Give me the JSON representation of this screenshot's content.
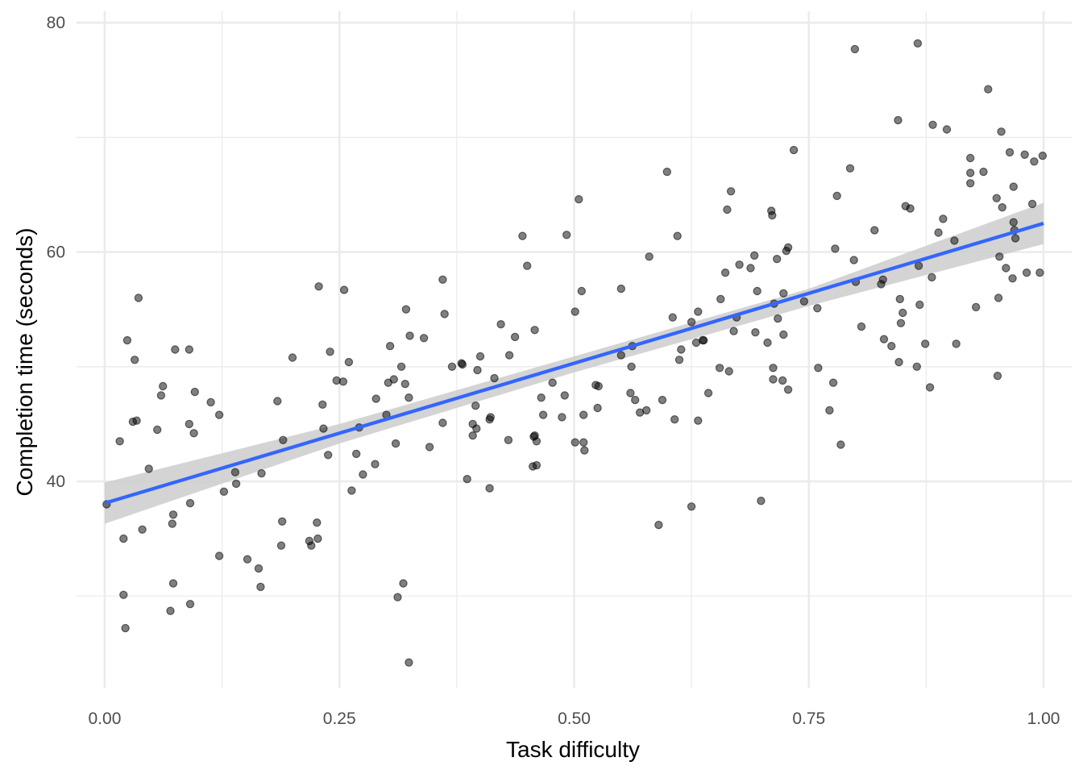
{
  "chart_data": {
    "type": "scatter",
    "xlabel": "Task difficulty",
    "ylabel": "Completion time (seconds)",
    "xlim": [
      -0.03,
      1.03
    ],
    "ylim": [
      22,
      81
    ],
    "x_ticks": [
      0.0,
      0.25,
      0.5,
      0.75,
      1.0
    ],
    "x_tick_labels": [
      "0.00",
      "0.25",
      "0.50",
      "0.75",
      "1.00"
    ],
    "y_ticks": [
      40,
      60,
      80
    ],
    "y_tick_labels": [
      "40",
      "60",
      "80"
    ],
    "x_minor_ticks": [
      0.125,
      0.375,
      0.625,
      0.875
    ],
    "y_minor_ticks": [
      30,
      50,
      70
    ],
    "grid": true,
    "legend": "none",
    "colors": {
      "points": "#000000",
      "fit_line": "#3366FF",
      "confidence_band": "#cccccc"
    },
    "fit": {
      "method": "linear",
      "x": [
        0.0,
        1.0
      ],
      "y": [
        38.1,
        62.5
      ],
      "ci_x": [
        0.0,
        0.25,
        0.5,
        0.75,
        1.0
      ],
      "ci_lower": [
        36.3,
        43.3,
        49.5,
        55.3,
        60.7
      ],
      "ci_upper": [
        39.9,
        45.0,
        50.9,
        56.8,
        64.3
      ]
    },
    "points": [
      {
        "x": 0.002,
        "y": 38.0
      },
      {
        "x": 0.016,
        "y": 43.5
      },
      {
        "x": 0.02,
        "y": 35.0
      },
      {
        "x": 0.02,
        "y": 30.1
      },
      {
        "x": 0.022,
        "y": 27.2
      },
      {
        "x": 0.024,
        "y": 52.3
      },
      {
        "x": 0.03,
        "y": 45.2
      },
      {
        "x": 0.032,
        "y": 50.6
      },
      {
        "x": 0.034,
        "y": 45.3
      },
      {
        "x": 0.036,
        "y": 56.0
      },
      {
        "x": 0.04,
        "y": 35.8
      },
      {
        "x": 0.047,
        "y": 41.1
      },
      {
        "x": 0.056,
        "y": 44.5
      },
      {
        "x": 0.06,
        "y": 47.5
      },
      {
        "x": 0.062,
        "y": 48.3
      },
      {
        "x": 0.07,
        "y": 28.7
      },
      {
        "x": 0.072,
        "y": 36.3
      },
      {
        "x": 0.073,
        "y": 37.1
      },
      {
        "x": 0.073,
        "y": 31.1
      },
      {
        "x": 0.075,
        "y": 51.5
      },
      {
        "x": 0.09,
        "y": 51.5
      },
      {
        "x": 0.09,
        "y": 45.0
      },
      {
        "x": 0.091,
        "y": 38.1
      },
      {
        "x": 0.091,
        "y": 29.3
      },
      {
        "x": 0.095,
        "y": 44.2
      },
      {
        "x": 0.096,
        "y": 47.8
      },
      {
        "x": 0.113,
        "y": 46.9
      },
      {
        "x": 0.122,
        "y": 33.5
      },
      {
        "x": 0.122,
        "y": 45.8
      },
      {
        "x": 0.127,
        "y": 39.1
      },
      {
        "x": 0.139,
        "y": 40.8
      },
      {
        "x": 0.14,
        "y": 39.8
      },
      {
        "x": 0.152,
        "y": 33.2
      },
      {
        "x": 0.164,
        "y": 32.4
      },
      {
        "x": 0.166,
        "y": 30.8
      },
      {
        "x": 0.167,
        "y": 40.7
      },
      {
        "x": 0.184,
        "y": 47.0
      },
      {
        "x": 0.188,
        "y": 34.4
      },
      {
        "x": 0.189,
        "y": 36.5
      },
      {
        "x": 0.19,
        "y": 43.6
      },
      {
        "x": 0.2,
        "y": 50.8
      },
      {
        "x": 0.218,
        "y": 34.8
      },
      {
        "x": 0.22,
        "y": 34.4
      },
      {
        "x": 0.226,
        "y": 36.4
      },
      {
        "x": 0.227,
        "y": 35.0
      },
      {
        "x": 0.228,
        "y": 57.0
      },
      {
        "x": 0.232,
        "y": 46.7
      },
      {
        "x": 0.233,
        "y": 44.6
      },
      {
        "x": 0.238,
        "y": 42.3
      },
      {
        "x": 0.24,
        "y": 51.3
      },
      {
        "x": 0.247,
        "y": 48.8
      },
      {
        "x": 0.254,
        "y": 48.7
      },
      {
        "x": 0.255,
        "y": 56.7
      },
      {
        "x": 0.26,
        "y": 50.4
      },
      {
        "x": 0.263,
        "y": 39.2
      },
      {
        "x": 0.268,
        "y": 42.4
      },
      {
        "x": 0.271,
        "y": 44.7
      },
      {
        "x": 0.275,
        "y": 40.6
      },
      {
        "x": 0.288,
        "y": 41.5
      },
      {
        "x": 0.289,
        "y": 47.2
      },
      {
        "x": 0.3,
        "y": 45.8
      },
      {
        "x": 0.302,
        "y": 48.6
      },
      {
        "x": 0.304,
        "y": 51.8
      },
      {
        "x": 0.308,
        "y": 48.9
      },
      {
        "x": 0.31,
        "y": 43.3
      },
      {
        "x": 0.312,
        "y": 29.9
      },
      {
        "x": 0.316,
        "y": 50.0
      },
      {
        "x": 0.318,
        "y": 31.1
      },
      {
        "x": 0.32,
        "y": 48.5
      },
      {
        "x": 0.321,
        "y": 55.0
      },
      {
        "x": 0.324,
        "y": 47.3
      },
      {
        "x": 0.324,
        "y": 24.2
      },
      {
        "x": 0.325,
        "y": 52.7
      },
      {
        "x": 0.34,
        "y": 52.5
      },
      {
        "x": 0.346,
        "y": 43.0
      },
      {
        "x": 0.36,
        "y": 57.6
      },
      {
        "x": 0.36,
        "y": 45.1
      },
      {
        "x": 0.362,
        "y": 54.6
      },
      {
        "x": 0.37,
        "y": 50.0
      },
      {
        "x": 0.38,
        "y": 50.3
      },
      {
        "x": 0.381,
        "y": 50.2
      },
      {
        "x": 0.386,
        "y": 40.2
      },
      {
        "x": 0.392,
        "y": 45.0
      },
      {
        "x": 0.392,
        "y": 44.0
      },
      {
        "x": 0.395,
        "y": 46.6
      },
      {
        "x": 0.396,
        "y": 44.6
      },
      {
        "x": 0.397,
        "y": 49.7
      },
      {
        "x": 0.4,
        "y": 50.9
      },
      {
        "x": 0.41,
        "y": 45.4
      },
      {
        "x": 0.41,
        "y": 39.4
      },
      {
        "x": 0.411,
        "y": 45.6
      },
      {
        "x": 0.415,
        "y": 49.0
      },
      {
        "x": 0.422,
        "y": 53.7
      },
      {
        "x": 0.43,
        "y": 43.6
      },
      {
        "x": 0.431,
        "y": 51.0
      },
      {
        "x": 0.437,
        "y": 52.6
      },
      {
        "x": 0.445,
        "y": 61.4
      },
      {
        "x": 0.45,
        "y": 58.8
      },
      {
        "x": 0.456,
        "y": 41.3
      },
      {
        "x": 0.457,
        "y": 43.9
      },
      {
        "x": 0.458,
        "y": 44.0
      },
      {
        "x": 0.458,
        "y": 53.2
      },
      {
        "x": 0.46,
        "y": 43.5
      },
      {
        "x": 0.46,
        "y": 41.4
      },
      {
        "x": 0.465,
        "y": 47.3
      },
      {
        "x": 0.467,
        "y": 45.8
      },
      {
        "x": 0.477,
        "y": 48.6
      },
      {
        "x": 0.487,
        "y": 45.6
      },
      {
        "x": 0.49,
        "y": 47.5
      },
      {
        "x": 0.492,
        "y": 61.5
      },
      {
        "x": 0.501,
        "y": 43.4
      },
      {
        "x": 0.501,
        "y": 54.8
      },
      {
        "x": 0.505,
        "y": 64.6
      },
      {
        "x": 0.508,
        "y": 56.6
      },
      {
        "x": 0.51,
        "y": 43.4
      },
      {
        "x": 0.51,
        "y": 45.8
      },
      {
        "x": 0.511,
        "y": 42.7
      },
      {
        "x": 0.523,
        "y": 48.4
      },
      {
        "x": 0.525,
        "y": 46.4
      },
      {
        "x": 0.526,
        "y": 48.3
      },
      {
        "x": 0.55,
        "y": 56.8
      },
      {
        "x": 0.55,
        "y": 51.0
      },
      {
        "x": 0.56,
        "y": 47.7
      },
      {
        "x": 0.561,
        "y": 50.0
      },
      {
        "x": 0.562,
        "y": 51.8
      },
      {
        "x": 0.565,
        "y": 47.1
      },
      {
        "x": 0.57,
        "y": 46.0
      },
      {
        "x": 0.577,
        "y": 46.2
      },
      {
        "x": 0.58,
        "y": 59.6
      },
      {
        "x": 0.59,
        "y": 36.2
      },
      {
        "x": 0.594,
        "y": 47.1
      },
      {
        "x": 0.599,
        "y": 67.0
      },
      {
        "x": 0.605,
        "y": 54.3
      },
      {
        "x": 0.607,
        "y": 45.4
      },
      {
        "x": 0.61,
        "y": 61.4
      },
      {
        "x": 0.612,
        "y": 50.6
      },
      {
        "x": 0.614,
        "y": 51.5
      },
      {
        "x": 0.625,
        "y": 37.8
      },
      {
        "x": 0.625,
        "y": 53.9
      },
      {
        "x": 0.63,
        "y": 52.1
      },
      {
        "x": 0.632,
        "y": 54.8
      },
      {
        "x": 0.632,
        "y": 45.3
      },
      {
        "x": 0.637,
        "y": 52.3
      },
      {
        "x": 0.638,
        "y": 52.3
      },
      {
        "x": 0.643,
        "y": 47.7
      },
      {
        "x": 0.655,
        "y": 49.9
      },
      {
        "x": 0.656,
        "y": 55.9
      },
      {
        "x": 0.661,
        "y": 58.2
      },
      {
        "x": 0.663,
        "y": 63.7
      },
      {
        "x": 0.665,
        "y": 49.6
      },
      {
        "x": 0.667,
        "y": 65.3
      },
      {
        "x": 0.67,
        "y": 53.1
      },
      {
        "x": 0.673,
        "y": 54.3
      },
      {
        "x": 0.676,
        "y": 58.9
      },
      {
        "x": 0.688,
        "y": 58.6
      },
      {
        "x": 0.692,
        "y": 59.7
      },
      {
        "x": 0.693,
        "y": 53.0
      },
      {
        "x": 0.695,
        "y": 56.6
      },
      {
        "x": 0.699,
        "y": 38.3
      },
      {
        "x": 0.706,
        "y": 52.1
      },
      {
        "x": 0.71,
        "y": 63.6
      },
      {
        "x": 0.711,
        "y": 63.2
      },
      {
        "x": 0.712,
        "y": 48.9
      },
      {
        "x": 0.712,
        "y": 49.9
      },
      {
        "x": 0.713,
        "y": 55.5
      },
      {
        "x": 0.716,
        "y": 59.4
      },
      {
        "x": 0.717,
        "y": 54.2
      },
      {
        "x": 0.722,
        "y": 48.8
      },
      {
        "x": 0.723,
        "y": 52.8
      },
      {
        "x": 0.723,
        "y": 56.4
      },
      {
        "x": 0.726,
        "y": 60.1
      },
      {
        "x": 0.728,
        "y": 60.4
      },
      {
        "x": 0.728,
        "y": 48.0
      },
      {
        "x": 0.734,
        "y": 68.9
      },
      {
        "x": 0.745,
        "y": 55.7
      },
      {
        "x": 0.759,
        "y": 55.1
      },
      {
        "x": 0.76,
        "y": 49.9
      },
      {
        "x": 0.772,
        "y": 46.2
      },
      {
        "x": 0.776,
        "y": 48.6
      },
      {
        "x": 0.778,
        "y": 60.3
      },
      {
        "x": 0.78,
        "y": 64.9
      },
      {
        "x": 0.784,
        "y": 43.2
      },
      {
        "x": 0.794,
        "y": 67.3
      },
      {
        "x": 0.798,
        "y": 59.3
      },
      {
        "x": 0.799,
        "y": 77.7
      },
      {
        "x": 0.8,
        "y": 57.4
      },
      {
        "x": 0.806,
        "y": 53.5
      },
      {
        "x": 0.82,
        "y": 61.9
      },
      {
        "x": 0.827,
        "y": 57.2
      },
      {
        "x": 0.829,
        "y": 57.6
      },
      {
        "x": 0.83,
        "y": 52.4
      },
      {
        "x": 0.838,
        "y": 51.8
      },
      {
        "x": 0.845,
        "y": 71.5
      },
      {
        "x": 0.846,
        "y": 50.4
      },
      {
        "x": 0.847,
        "y": 55.9
      },
      {
        "x": 0.848,
        "y": 53.8
      },
      {
        "x": 0.85,
        "y": 54.7
      },
      {
        "x": 0.853,
        "y": 64.0
      },
      {
        "x": 0.858,
        "y": 63.8
      },
      {
        "x": 0.865,
        "y": 50.0
      },
      {
        "x": 0.866,
        "y": 78.2
      },
      {
        "x": 0.867,
        "y": 58.8
      },
      {
        "x": 0.868,
        "y": 55.4
      },
      {
        "x": 0.874,
        "y": 52.0
      },
      {
        "x": 0.879,
        "y": 48.2
      },
      {
        "x": 0.881,
        "y": 57.8
      },
      {
        "x": 0.882,
        "y": 71.1
      },
      {
        "x": 0.888,
        "y": 61.7
      },
      {
        "x": 0.893,
        "y": 62.9
      },
      {
        "x": 0.897,
        "y": 70.7
      },
      {
        "x": 0.905,
        "y": 61.0
      },
      {
        "x": 0.907,
        "y": 52.0
      },
      {
        "x": 0.922,
        "y": 68.2
      },
      {
        "x": 0.922,
        "y": 66.9
      },
      {
        "x": 0.922,
        "y": 66.0
      },
      {
        "x": 0.928,
        "y": 55.2
      },
      {
        "x": 0.936,
        "y": 67.0
      },
      {
        "x": 0.941,
        "y": 74.2
      },
      {
        "x": 0.95,
        "y": 64.7
      },
      {
        "x": 0.951,
        "y": 49.2
      },
      {
        "x": 0.952,
        "y": 56.0
      },
      {
        "x": 0.953,
        "y": 59.6
      },
      {
        "x": 0.955,
        "y": 70.5
      },
      {
        "x": 0.956,
        "y": 63.9
      },
      {
        "x": 0.96,
        "y": 58.6
      },
      {
        "x": 0.964,
        "y": 68.7
      },
      {
        "x": 0.967,
        "y": 57.7
      },
      {
        "x": 0.968,
        "y": 65.7
      },
      {
        "x": 0.968,
        "y": 62.6
      },
      {
        "x": 0.969,
        "y": 61.9
      },
      {
        "x": 0.97,
        "y": 61.2
      },
      {
        "x": 0.98,
        "y": 68.5
      },
      {
        "x": 0.982,
        "y": 58.2
      },
      {
        "x": 0.988,
        "y": 64.2
      },
      {
        "x": 0.99,
        "y": 67.9
      },
      {
        "x": 0.996,
        "y": 58.2
      },
      {
        "x": 0.999,
        "y": 68.4
      }
    ]
  }
}
